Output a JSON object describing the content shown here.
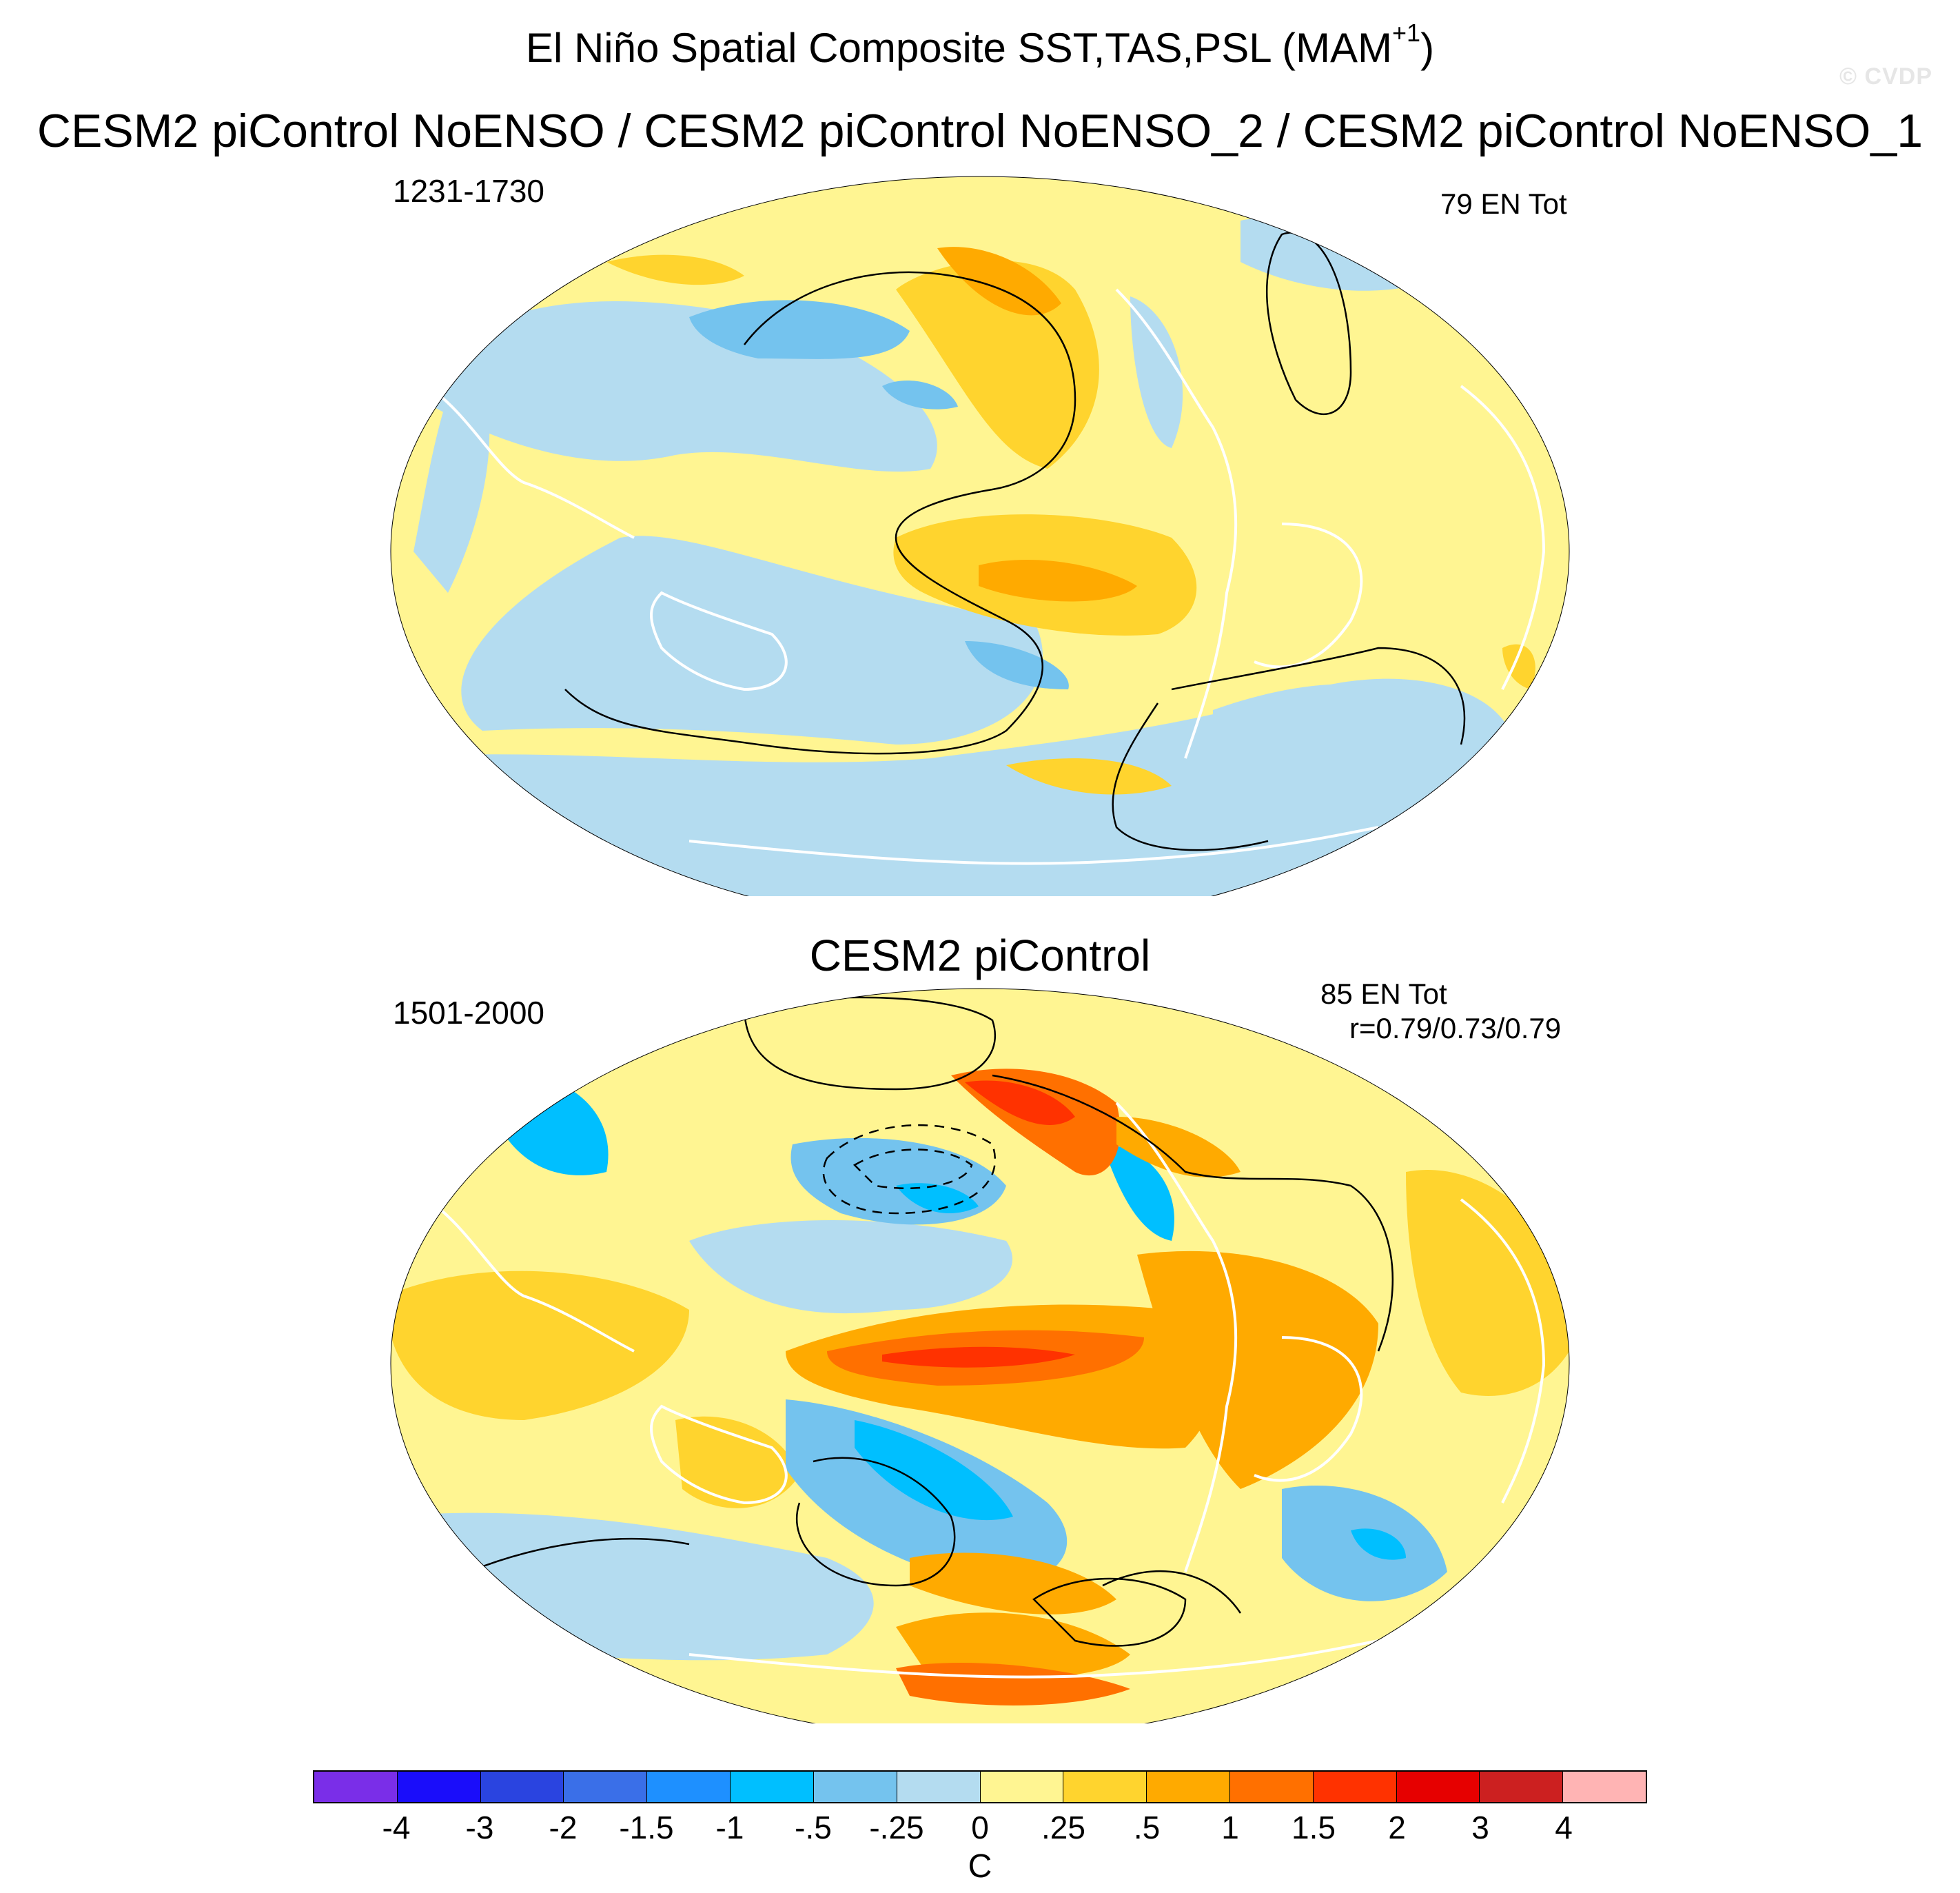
{
  "header": {
    "title": "El Niño Spatial Composite SST,TAS,PSL (MAM",
    "title_superscript": "+1",
    "title_suffix": ")",
    "watermark": "© CVDP",
    "subtitle": "CESM2 piControl NoENSO / CESM2 piControl NoENSO_2 / CESM2 piControl NoENSO_1"
  },
  "panels": [
    {
      "title": "",
      "period": "1231-1730",
      "event_count": "79 EN Tot",
      "correlation": ""
    },
    {
      "title": "CESM2 piControl",
      "period": "1501-2000",
      "event_count": "85 EN Tot",
      "correlation": "r=0.79/0.73/0.79"
    }
  ],
  "colorbar": {
    "units": "C",
    "labels": [
      "-4",
      "-3",
      "-2",
      "-1.5",
      "-1",
      "-.5",
      "-.25",
      "0",
      ".25",
      ".5",
      "1",
      "1.5",
      "2",
      "3",
      "4"
    ],
    "colors": [
      "#7a2ee8",
      "#1a0dfa",
      "#2a44e0",
      "#3a6fe8",
      "#1e90ff",
      "#00bfff",
      "#74c3ee",
      "#b4dcf0",
      "#fff592",
      "#ffd42e",
      "#ffaa00",
      "#ff7000",
      "#ff3200",
      "#e60000",
      "#cc2020",
      "#ffb4b4"
    ]
  },
  "map_style": {
    "ocean_land_base": "#fff592",
    "coast_color": "#ffffff",
    "contour_color": "#000000"
  }
}
